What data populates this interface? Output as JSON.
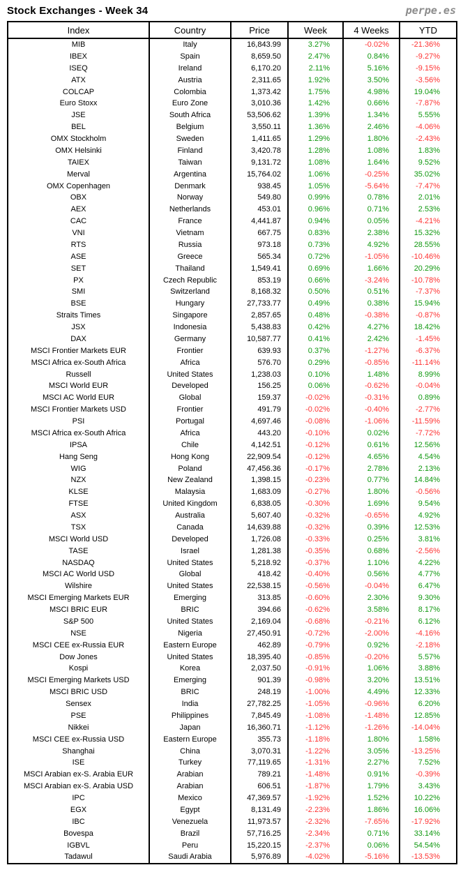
{
  "header": {
    "title": "Stock Exchanges - Week 34",
    "brand": "perpe.es"
  },
  "colors": {
    "positive": "#119911",
    "negative": "#ff3333",
    "text": "#000000",
    "brand": "#8c8c8c",
    "border": "#000000"
  },
  "chart_data": {
    "type": "table",
    "title": "Stock Exchanges - Week 34",
    "columns": [
      "Index",
      "Country",
      "Price",
      "Week",
      "4 Weeks",
      "YTD"
    ],
    "rows": [
      [
        "MIB",
        "Italy",
        "16,843.99",
        "3.27%",
        "-0.02%",
        "-21.36%"
      ],
      [
        "IBEX",
        "Spain",
        "8,659.50",
        "2.47%",
        "0.84%",
        "-9.27%"
      ],
      [
        "ISEQ",
        "Ireland",
        "6,170.20",
        "2.11%",
        "5.16%",
        "-9.15%"
      ],
      [
        "ATX",
        "Austria",
        "2,311.65",
        "1.92%",
        "3.50%",
        "-3.56%"
      ],
      [
        "COLCAP",
        "Colombia",
        "1,373.42",
        "1.75%",
        "4.98%",
        "19.04%"
      ],
      [
        "Euro Stoxx",
        "Euro Zone",
        "3,010.36",
        "1.42%",
        "0.66%",
        "-7.87%"
      ],
      [
        "JSE",
        "South Africa",
        "53,506.62",
        "1.39%",
        "1.34%",
        "5.55%"
      ],
      [
        "BEL",
        "Belgium",
        "3,550.11",
        "1.36%",
        "2.46%",
        "-4.06%"
      ],
      [
        "OMX Stockholm",
        "Sweden",
        "1,411.65",
        "1.29%",
        "1.80%",
        "-2.43%"
      ],
      [
        "OMX Helsinki",
        "Finland",
        "3,420.78",
        "1.28%",
        "1.08%",
        "1.83%"
      ],
      [
        "TAIEX",
        "Taiwan",
        "9,131.72",
        "1.08%",
        "1.64%",
        "9.52%"
      ],
      [
        "Merval",
        "Argentina",
        "15,764.02",
        "1.06%",
        "-0.25%",
        "35.02%"
      ],
      [
        "OMX Copenhagen",
        "Denmark",
        "938.45",
        "1.05%",
        "-5.64%",
        "-7.47%"
      ],
      [
        "OBX",
        "Norway",
        "549.80",
        "0.99%",
        "0.78%",
        "2.01%"
      ],
      [
        "AEX",
        "Netherlands",
        "453.01",
        "0.96%",
        "0.71%",
        "2.53%"
      ],
      [
        "CAC",
        "France",
        "4,441.87",
        "0.94%",
        "0.05%",
        "-4.21%"
      ],
      [
        "VNI",
        "Vietnam",
        "667.75",
        "0.83%",
        "2.38%",
        "15.32%"
      ],
      [
        "RTS",
        "Russia",
        "973.18",
        "0.73%",
        "4.92%",
        "28.55%"
      ],
      [
        "ASE",
        "Greece",
        "565.34",
        "0.72%",
        "-1.05%",
        "-10.46%"
      ],
      [
        "SET",
        "Thailand",
        "1,549.41",
        "0.69%",
        "1.66%",
        "20.29%"
      ],
      [
        "PX",
        "Czech Republic",
        "853.19",
        "0.66%",
        "-3.24%",
        "-10.78%"
      ],
      [
        "SMI",
        "Switzerland",
        "8,168.32",
        "0.50%",
        "0.51%",
        "-7.37%"
      ],
      [
        "BSE",
        "Hungary",
        "27,733.77",
        "0.49%",
        "0.38%",
        "15.94%"
      ],
      [
        "Straits Times",
        "Singapore",
        "2,857.65",
        "0.48%",
        "-0.38%",
        "-0.87%"
      ],
      [
        "JSX",
        "Indonesia",
        "5,438.83",
        "0.42%",
        "4.27%",
        "18.42%"
      ],
      [
        "DAX",
        "Germany",
        "10,587.77",
        "0.41%",
        "2.42%",
        "-1.45%"
      ],
      [
        "MSCI Frontier Markets EUR",
        "Frontier",
        "639.93",
        "0.37%",
        "-1.27%",
        "-6.37%"
      ],
      [
        "MSCI Africa ex-South Africa",
        "Africa",
        "576.70",
        "0.29%",
        "-0.85%",
        "-11.14%"
      ],
      [
        "Russell",
        "United States",
        "1,238.03",
        "0.10%",
        "1.48%",
        "8.99%"
      ],
      [
        "MSCI World EUR",
        "Developed",
        "156.25",
        "0.06%",
        "-0.62%",
        "-0.04%"
      ],
      [
        "MSCI AC World EUR",
        "Global",
        "159.37",
        "-0.02%",
        "-0.31%",
        "0.89%"
      ],
      [
        "MSCI Frontier Markets USD",
        "Frontier",
        "491.79",
        "-0.02%",
        "-0.40%",
        "-2.77%"
      ],
      [
        "PSI",
        "Portugal",
        "4,697.46",
        "-0.08%",
        "-1.06%",
        "-11.59%"
      ],
      [
        "MSCI Africa ex-South Africa",
        "Africa",
        "443.20",
        "-0.10%",
        "0.02%",
        "-7.72%"
      ],
      [
        "IPSA",
        "Chile",
        "4,142.51",
        "-0.12%",
        "0.61%",
        "12.56%"
      ],
      [
        "Hang Seng",
        "Hong Kong",
        "22,909.54",
        "-0.12%",
        "4.65%",
        "4.54%"
      ],
      [
        "WIG",
        "Poland",
        "47,456.36",
        "-0.17%",
        "2.78%",
        "2.13%"
      ],
      [
        "NZX",
        "New Zealand",
        "1,398.15",
        "-0.23%",
        "0.77%",
        "14.84%"
      ],
      [
        "KLSE",
        "Malaysia",
        "1,683.09",
        "-0.27%",
        "1.80%",
        "-0.56%"
      ],
      [
        "FTSE",
        "United Kingdom",
        "6,838.05",
        "-0.30%",
        "1.69%",
        "9.54%"
      ],
      [
        "ASX",
        "Australia",
        "5,607.40",
        "-0.32%",
        "-0.65%",
        "4.92%"
      ],
      [
        "TSX",
        "Canada",
        "14,639.88",
        "-0.32%",
        "0.39%",
        "12.53%"
      ],
      [
        "MSCI World USD",
        "Developed",
        "1,726.08",
        "-0.33%",
        "0.25%",
        "3.81%"
      ],
      [
        "TASE",
        "Israel",
        "1,281.38",
        "-0.35%",
        "0.68%",
        "-2.56%"
      ],
      [
        "NASDAQ",
        "United States",
        "5,218.92",
        "-0.37%",
        "1.10%",
        "4.22%"
      ],
      [
        "MSCI AC World USD",
        "Global",
        "418.42",
        "-0.40%",
        "0.56%",
        "4.77%"
      ],
      [
        "Wilshire",
        "United States",
        "22,538.15",
        "-0.56%",
        "-0.04%",
        "6.47%"
      ],
      [
        "MSCI Emerging Markets EUR",
        "Emerging",
        "313.85",
        "-0.60%",
        "2.30%",
        "9.30%"
      ],
      [
        "MSCI BRIC EUR",
        "BRIC",
        "394.66",
        "-0.62%",
        "3.58%",
        "8.17%"
      ],
      [
        "S&P 500",
        "United States",
        "2,169.04",
        "-0.68%",
        "-0.21%",
        "6.12%"
      ],
      [
        "NSE",
        "Nigeria",
        "27,450.91",
        "-0.72%",
        "-2.00%",
        "-4.16%"
      ],
      [
        "MSCI CEE ex-Russia EUR",
        "Eastern Europe",
        "462.89",
        "-0.79%",
        "0.92%",
        "-2.18%"
      ],
      [
        "Dow Jones",
        "United States",
        "18,395.40",
        "-0.85%",
        "-0.20%",
        "5.57%"
      ],
      [
        "Kospi",
        "Korea",
        "2,037.50",
        "-0.91%",
        "1.06%",
        "3.88%"
      ],
      [
        "MSCI Emerging Markets USD",
        "Emerging",
        "901.39",
        "-0.98%",
        "3.20%",
        "13.51%"
      ],
      [
        "MSCI BRIC USD",
        "BRIC",
        "248.19",
        "-1.00%",
        "4.49%",
        "12.33%"
      ],
      [
        "Sensex",
        "India",
        "27,782.25",
        "-1.05%",
        "-0.96%",
        "6.20%"
      ],
      [
        "PSE",
        "Philippines",
        "7,845.49",
        "-1.08%",
        "-1.48%",
        "12.85%"
      ],
      [
        "Nikkei",
        "Japan",
        "16,360.71",
        "-1.12%",
        "-1.26%",
        "-14.04%"
      ],
      [
        "MSCI CEE ex-Russia USD",
        "Eastern Europe",
        "355.73",
        "-1.18%",
        "1.80%",
        "1.58%"
      ],
      [
        "Shanghai",
        "China",
        "3,070.31",
        "-1.22%",
        "3.05%",
        "-13.25%"
      ],
      [
        "ISE",
        "Turkey",
        "77,119.65",
        "-1.31%",
        "2.27%",
        "7.52%"
      ],
      [
        "MSCI Arabian ex-S. Arabia EUR",
        "Arabian",
        "789.21",
        "-1.48%",
        "0.91%",
        "-0.39%"
      ],
      [
        "MSCI Arabian ex-S. Arabia USD",
        "Arabian",
        "606.51",
        "-1.87%",
        "1.79%",
        "3.43%"
      ],
      [
        "IPC",
        "Mexico",
        "47,369.57",
        "-1.92%",
        "1.52%",
        "10.22%"
      ],
      [
        "EGX",
        "Egypt",
        "8,131.49",
        "-2.23%",
        "1.86%",
        "16.06%"
      ],
      [
        "IBC",
        "Venezuela",
        "11,973.57",
        "-2.32%",
        "-7.65%",
        "-17.92%"
      ],
      [
        "Bovespa",
        "Brazil",
        "57,716.25",
        "-2.34%",
        "0.71%",
        "33.14%"
      ],
      [
        "IGBVL",
        "Peru",
        "15,220.15",
        "-2.37%",
        "0.06%",
        "54.54%"
      ],
      [
        "Tadawul",
        "Saudi Arabia",
        "5,976.89",
        "-4.02%",
        "-5.16%",
        "-13.53%"
      ]
    ]
  }
}
